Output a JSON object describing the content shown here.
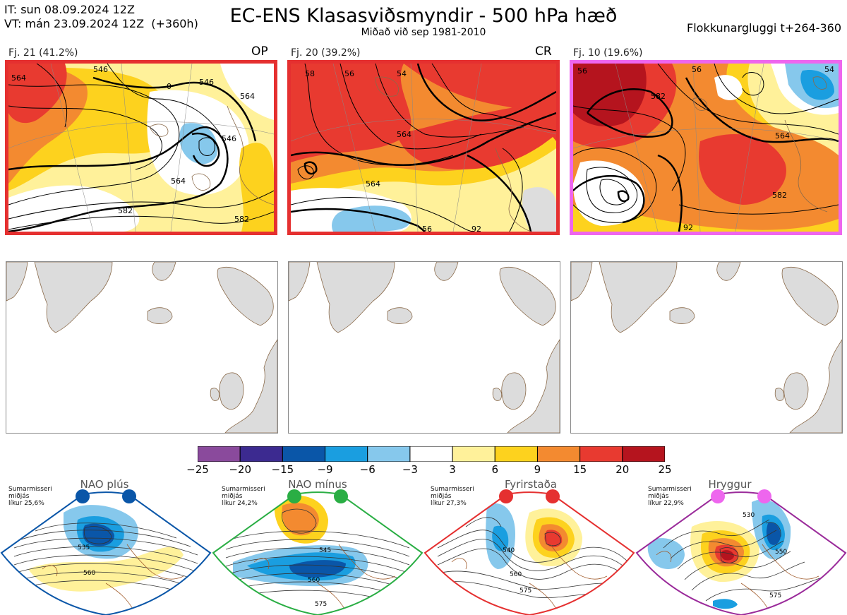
{
  "header": {
    "initial_time": "IT: sun 08.09.2024 12Z",
    "valid_time": "VT: mán 23.09.2024 12Z  (+360h)",
    "title": "EC-ENS Klasasviðsmyndir - 500 hPa hæð",
    "subtitle": "Miðað við sep 1981-2010",
    "window": "Flokkunargluggi t+264-360"
  },
  "clusters": [
    {
      "label": "Fj. 21 (41.2%)",
      "code": "OP",
      "border_color": "#e53030",
      "contours": [
        "564",
        "546",
        "0",
        "546",
        "564",
        "546",
        "564",
        "582",
        "582"
      ]
    },
    {
      "label": "Fj. 20 (39.2%)",
      "code": "CR",
      "border_color": "#e53030",
      "contours": [
        "58",
        "56",
        "54",
        "564",
        "564",
        "56",
        "92"
      ]
    },
    {
      "label": "Fj. 10 (19.6%)",
      "code": "",
      "border_color": "#ee66ee",
      "contours": [
        "56",
        "582",
        "54",
        "56",
        "564",
        "582",
        "92"
      ]
    }
  ],
  "colorbar": {
    "ticks": [
      "−25",
      "−20",
      "−15",
      "−9",
      "−6",
      "−3",
      "3",
      "6",
      "9",
      "15",
      "20",
      "25"
    ],
    "colors": [
      "#8a4a9c",
      "#3c2a90",
      "#0a56a8",
      "#1a9ee0",
      "#86c8ec",
      "#ffffff",
      "#fff19a",
      "#fdd21e",
      "#f38a30",
      "#e83a30",
      "#b5141e"
    ]
  },
  "regimes": [
    {
      "name": "NAO plús",
      "season": "Sumarmisseri",
      "median": "miðjás",
      "prob": "líkur 25,6%",
      "color": "#0a56a8",
      "contours": [
        "535",
        "560"
      ]
    },
    {
      "name": "NAO mínus",
      "season": "Sumarmisseri",
      "median": "miðjás",
      "prob": "líkur 24,2%",
      "color": "#2aae44",
      "contours": [
        "545",
        "560",
        "575"
      ]
    },
    {
      "name": "Fyrirstaða",
      "season": "Sumarmisseri",
      "median": "miðjás",
      "prob": "líkur 27,3%",
      "color": "#e53030",
      "contours": [
        "540",
        "560",
        "575"
      ]
    },
    {
      "name": "Hryggur",
      "season": "Sumarmisseri",
      "median": "miðjás",
      "prob": "líkur 22,9%",
      "color": "#9a2a9a",
      "contours": [
        "530",
        "550",
        "575"
      ]
    }
  ]
}
